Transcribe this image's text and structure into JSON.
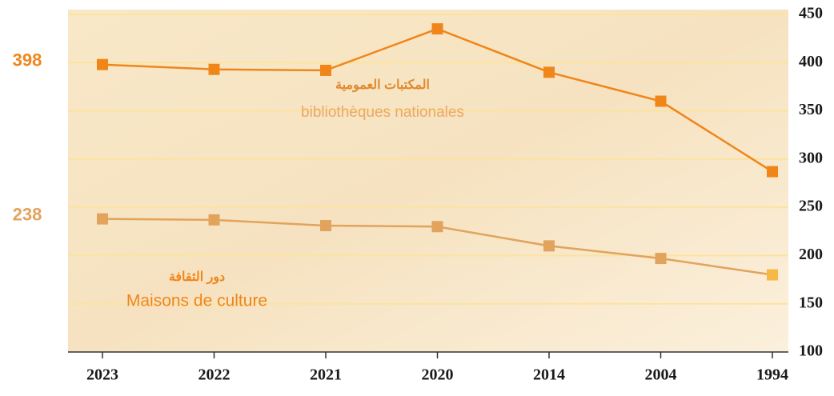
{
  "chart_data": {
    "type": "line",
    "categories": [
      "2023",
      "2022",
      "2021",
      "2020",
      "2014",
      "2004",
      "1994"
    ],
    "series": [
      {
        "name": "bibliothèques nationales",
        "name_ar": "المكتبات العمومية",
        "color": "#f0861a",
        "values": [
          398,
          393,
          392,
          435,
          390,
          360,
          287
        ],
        "value_labels": [
          "398",
          null,
          null,
          null,
          null,
          null,
          null
        ]
      },
      {
        "name": "Maisons de culture",
        "name_ar": "دور الثقافة",
        "color": "#e2a35c",
        "values": [
          238,
          237,
          231,
          230,
          210,
          197,
          180
        ],
        "value_labels": [
          "238",
          null,
          null,
          null,
          null,
          null,
          null
        ]
      }
    ],
    "ylim": [
      100,
      450
    ],
    "yticks": [
      100,
      150,
      200,
      250,
      300,
      350,
      400,
      450
    ],
    "grid": true
  }
}
